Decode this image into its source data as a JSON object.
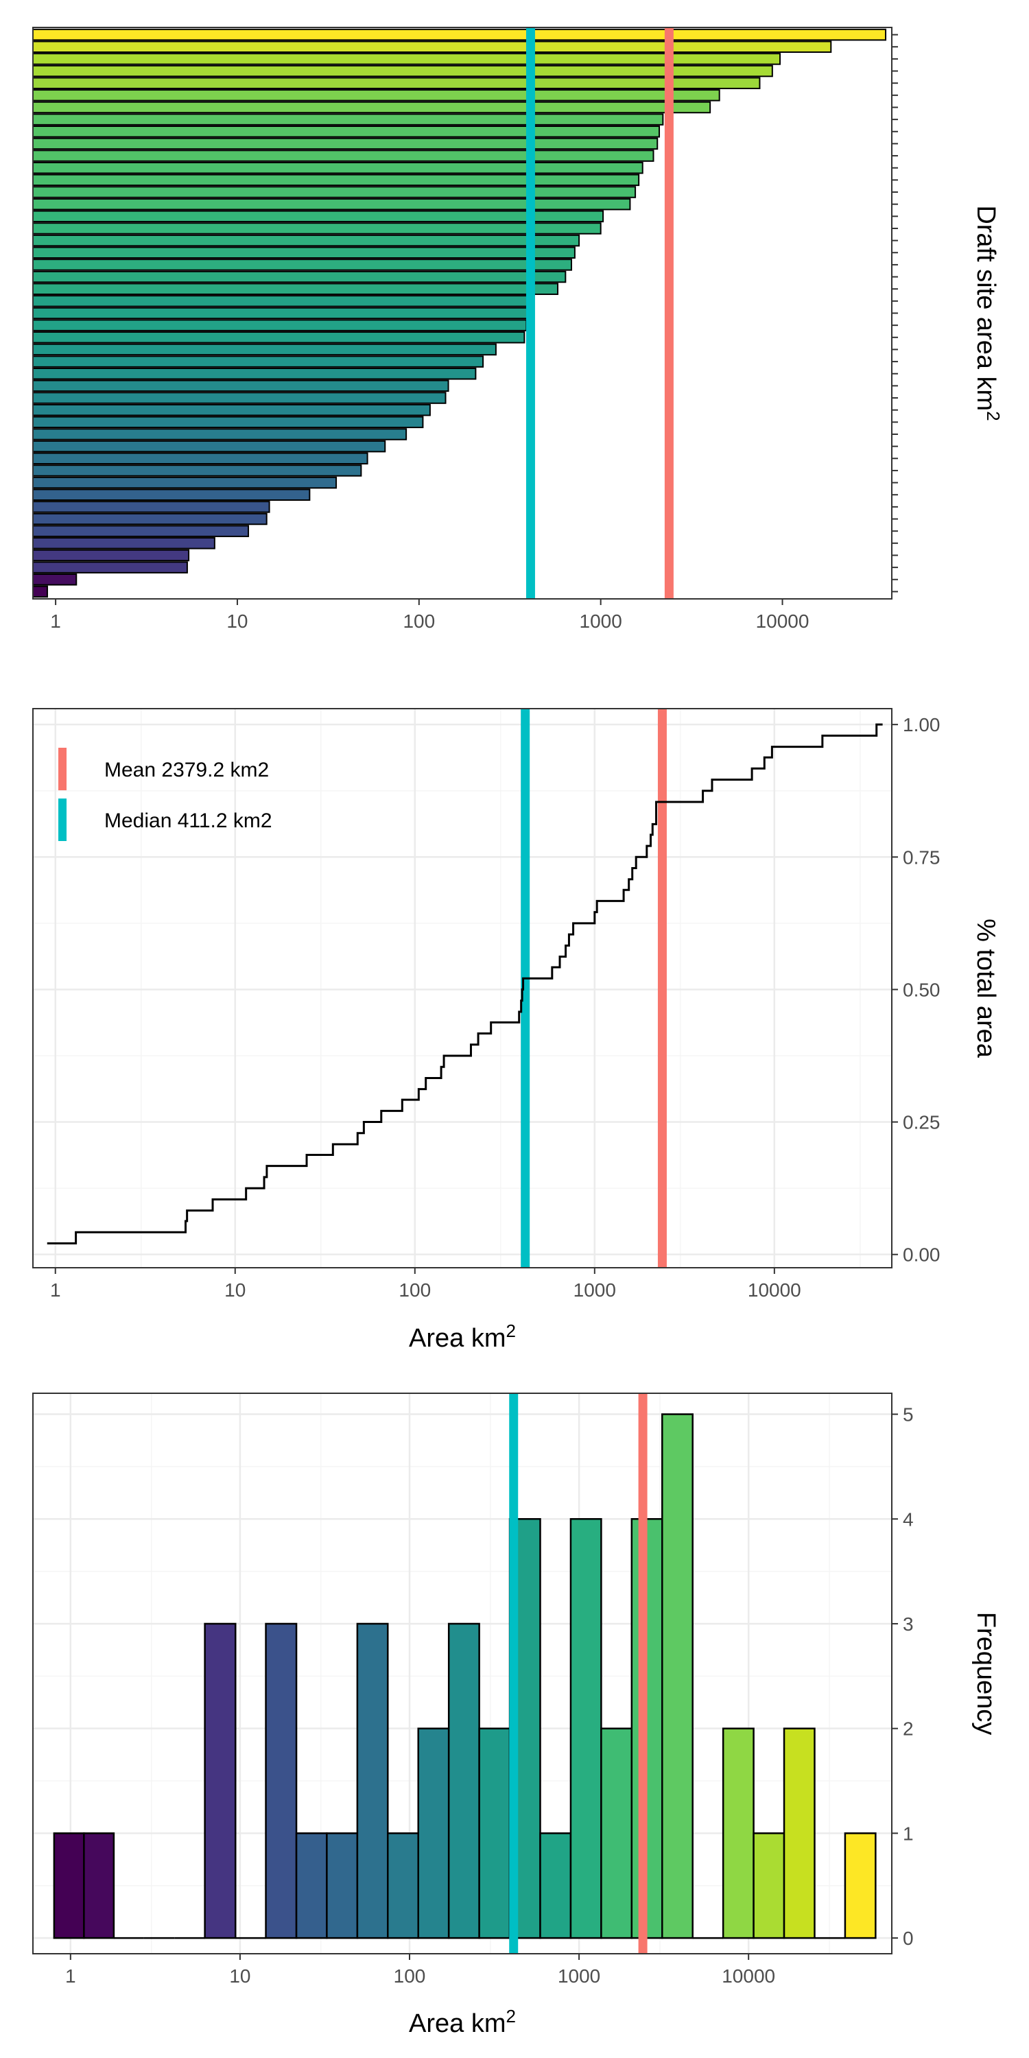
{
  "chart_data": [
    {
      "type": "bar",
      "orientation": "horizontal",
      "xscale": "log10",
      "xlim": [
        0.75,
        40000
      ],
      "x_ticks": [
        1,
        10,
        100,
        1000,
        10000
      ],
      "x_tick_labels": [
        "1",
        "10",
        "100",
        "1000",
        "10000"
      ],
      "ylabel": "Draft site area km",
      "ylabel_superscript": "2",
      "values": [
        0.9,
        1.3,
        5.3,
        5.4,
        7.5,
        11.5,
        14.5,
        15,
        25,
        35,
        48,
        52,
        65,
        85,
        105,
        115,
        140,
        145,
        205,
        225,
        265,
        380,
        390,
        395,
        400,
        580,
        640,
        690,
        720,
        760,
        1000,
        1030,
        1450,
        1550,
        1620,
        1700,
        1950,
        2050,
        2100,
        2200,
        4000,
        4500,
        7500,
        8800,
        9700,
        18500,
        37000
      ],
      "fill_scale": "viridis",
      "mean": 2379.2,
      "median": 411.2,
      "grid": false
    },
    {
      "type": "line",
      "step": true,
      "xscale": "log10",
      "xlim": [
        0.75,
        45000
      ],
      "ylim": [
        -0.025,
        1.03
      ],
      "x_ticks": [
        1,
        10,
        100,
        1000,
        10000
      ],
      "x_tick_labels": [
        "1",
        "10",
        "100",
        "1000",
        "10000"
      ],
      "y_ticks": [
        0,
        0.25,
        0.5,
        0.75,
        1
      ],
      "y_tick_labels": [
        "0.00",
        "0.25",
        "0.50",
        "0.75",
        "1.00"
      ],
      "xlabel": "Area km",
      "xlabel_superscript": "2",
      "ylabel": "% total area",
      "x": [
        0.9,
        1.3,
        5.3,
        5.4,
        7.5,
        11.5,
        14.5,
        15,
        25,
        35,
        48,
        52,
        65,
        85,
        105,
        115,
        140,
        145,
        205,
        225,
        265,
        380,
        390,
        395,
        400,
        580,
        640,
        690,
        720,
        760,
        1000,
        1030,
        1450,
        1550,
        1620,
        1700,
        1950,
        2050,
        2100,
        2200,
        4000,
        4500,
        7500,
        8800,
        9700,
        18500,
        37000,
        40000
      ],
      "y": [
        0.021,
        0.042,
        0.063,
        0.083,
        0.104,
        0.125,
        0.146,
        0.167,
        0.188,
        0.208,
        0.229,
        0.25,
        0.271,
        0.292,
        0.312,
        0.333,
        0.354,
        0.375,
        0.396,
        0.417,
        0.438,
        0.458,
        0.479,
        0.5,
        0.521,
        0.542,
        0.562,
        0.583,
        0.604,
        0.625,
        0.646,
        0.667,
        0.688,
        0.708,
        0.729,
        0.75,
        0.771,
        0.792,
        0.812,
        0.854,
        0.875,
        0.896,
        0.917,
        0.938,
        0.958,
        0.979,
        1.0,
        1.0
      ],
      "legend": {
        "position": "top-left",
        "entries": [
          {
            "label": "Mean 2379.2 km2",
            "color": "#F8766D"
          },
          {
            "label": "Median 411.2 km2",
            "color": "#00BFC4"
          }
        ]
      },
      "mean": 2379.2,
      "median": 411.2,
      "grid": true
    },
    {
      "type": "bar",
      "subtype": "histogram",
      "xscale": "log10",
      "xlim": [
        0.6,
        70000
      ],
      "ylim": [
        -0.15,
        5.2
      ],
      "x_ticks": [
        1,
        10,
        100,
        1000,
        10000
      ],
      "x_tick_labels": [
        "1",
        "10",
        "100",
        "1000",
        "10000"
      ],
      "y_ticks": [
        0,
        1,
        2,
        3,
        4,
        5
      ],
      "y_tick_labels": [
        "0",
        "1",
        "2",
        "3",
        "4",
        "5"
      ],
      "xlabel": "Area km",
      "xlabel_superscript": "2",
      "ylabel": "Frequency",
      "bins": [
        {
          "x0": 0.8,
          "x1": 1.2,
          "count": 1,
          "fill": "#440154"
        },
        {
          "x0": 1.2,
          "x1": 1.8,
          "count": 1,
          "fill": "#46085c"
        },
        {
          "x0": 1.8,
          "x1": 2.7,
          "count": 0,
          "fill": "#471063"
        },
        {
          "x0": 2.7,
          "x1": 4.1,
          "count": 0,
          "fill": "#48176a"
        },
        {
          "x0": 4.1,
          "x1": 6.2,
          "count": 0,
          "fill": "#481d6f"
        },
        {
          "x0": 6.2,
          "x1": 9.4,
          "count": 3,
          "fill": "#453581"
        },
        {
          "x0": 9.4,
          "x1": 14.2,
          "count": 0,
          "fill": "#423f85"
        },
        {
          "x0": 14.2,
          "x1": 21.5,
          "count": 3,
          "fill": "#3b528b"
        },
        {
          "x0": 21.5,
          "x1": 32.5,
          "count": 1,
          "fill": "#355f8d"
        },
        {
          "x0": 32.5,
          "x1": 49.2,
          "count": 1,
          "fill": "#31688e"
        },
        {
          "x0": 49.2,
          "x1": 74.4,
          "count": 3,
          "fill": "#2d718e"
        },
        {
          "x0": 74.4,
          "x1": 112.6,
          "count": 1,
          "fill": "#297b8e"
        },
        {
          "x0": 112.6,
          "x1": 170.4,
          "count": 2,
          "fill": "#25848e"
        },
        {
          "x0": 170.4,
          "x1": 257.8,
          "count": 3,
          "fill": "#218e8d"
        },
        {
          "x0": 257.8,
          "x1": 390.1,
          "count": 2,
          "fill": "#1e9b8a"
        },
        {
          "x0": 390.1,
          "x1": 590.2,
          "count": 4,
          "fill": "#1fa088"
        },
        {
          "x0": 590.2,
          "x1": 893,
          "count": 1,
          "fill": "#20a486"
        },
        {
          "x0": 893,
          "x1": 1351.2,
          "count": 4,
          "fill": "#28ae80"
        },
        {
          "x0": 1351.2,
          "x1": 2044.4,
          "count": 2,
          "fill": "#3fbc73"
        },
        {
          "x0": 2044.4,
          "x1": 3093.3,
          "count": 4,
          "fill": "#4ac16d"
        },
        {
          "x0": 3093.3,
          "x1": 4680.4,
          "count": 5,
          "fill": "#5ec962"
        },
        {
          "x0": 4680.4,
          "x1": 7081.6,
          "count": 0,
          "fill": "#75d054"
        },
        {
          "x0": 7081.6,
          "x1": 10715,
          "count": 2,
          "fill": "#8fd744"
        },
        {
          "x0": 10715,
          "x1": 16212,
          "count": 1,
          "fill": "#aadc32"
        },
        {
          "x0": 16212,
          "x1": 24530,
          "count": 2,
          "fill": "#c7e020"
        },
        {
          "x0": 24530,
          "x1": 37115,
          "count": 0,
          "fill": "#d8e219"
        },
        {
          "x0": 37115,
          "x1": 56156,
          "count": 1,
          "fill": "#fde725"
        }
      ],
      "mean": 2379.2,
      "median": 411.2,
      "grid": true
    }
  ],
  "colors": {
    "mean_line": "#F8766D",
    "median_line": "#00BFC4",
    "panel_border": "#333333",
    "grid_major": "#ebebeb",
    "grid_minor": "#f5f5f5",
    "tick_text": "#4d4d4d",
    "step_line": "#000000",
    "bar_outline": "#000000"
  }
}
